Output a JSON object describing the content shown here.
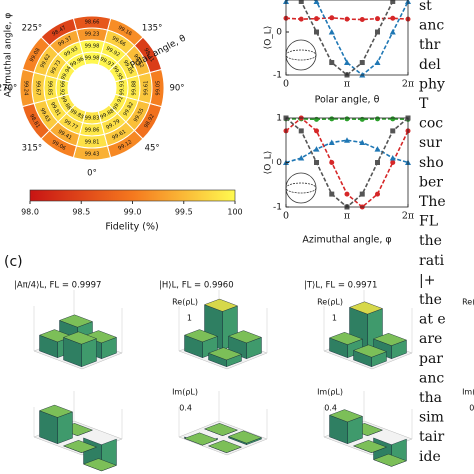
{
  "polar": {
    "center": null,
    "angle_labels": [
      {
        "angle": 225,
        "label": "225°"
      },
      {
        "angle": 135,
        "label": "135°"
      },
      {
        "angle": 270,
        "label": "270°"
      },
      {
        "angle": 90,
        "label": "90°"
      },
      {
        "angle": 315,
        "label": "315°"
      },
      {
        "angle": 45,
        "label": "45°"
      },
      {
        "angle": 0,
        "label": "0°"
      }
    ],
    "azimuthal_label": "Azimuthal angle, φ",
    "polar_label": "Polar angle, θ",
    "rings": [
      [
        99.83,
        99.88,
        99.91,
        99.93,
        99.95,
        99.97,
        99.98,
        99.96,
        99.94,
        99.92,
        99.86,
        99.85
      ],
      [
        99.86,
        99.79,
        99.82,
        99.88,
        99.85,
        99.92,
        99.98,
        99.93,
        99.73,
        99.85,
        99.81,
        99.77
      ],
      [
        99.81,
        99.61,
        99.55,
        99.61,
        99.52,
        99.66,
        99.23,
        99.37,
        99.62,
        99.67,
        99.63,
        99.41
      ],
      [
        99.43,
        99.12,
        98.92,
        99.05,
        98.41,
        99.16,
        98.66,
        98.47,
        99.08,
        99.24,
        98.81,
        99.06
      ]
    ]
  },
  "colorbar": {
    "clim": [
      98,
      100
    ],
    "ticks": [
      {
        "value": 98,
        "label": "98.0"
      },
      98.5,
      {
        "value": 99,
        "label": "99.0"
      },
      99.5,
      100
    ],
    "label": "Fidelity (%)"
  },
  "plots": [
    {
      "ylabel": "⟨O_L⟩",
      "xlabel": "Polar angle, θ",
      "xlim": [
        0,
        6.2832
      ],
      "ylim": [
        -1,
        1
      ],
      "xticks": [
        0,
        {
          "value": 3.1416,
          "label": "π"
        },
        {
          "value": 6.2832,
          "label": "2π"
        }
      ],
      "yticks": [
        0,
        -1
      ],
      "x": [
        0,
        0.7854,
        1.5708,
        2.3562,
        3.1416,
        3.927,
        4.7124,
        5.4978,
        6.2832
      ],
      "series": [
        {
          "color": "#d62728",
          "marker": "circle",
          "values": [
            0.32,
            0.3,
            0.31,
            0.33,
            0.3,
            0.29,
            0.31,
            0.32,
            0.3
          ]
        },
        {
          "color": "#1f77b4",
          "marker": "triangle",
          "values": [
            0.71,
            1,
            0.71,
            0,
            -0.71,
            -1,
            -0.71,
            0,
            0.71
          ]
        },
        {
          "color": "#555555",
          "marker": "square",
          "values": [
            1,
            0.71,
            0,
            -0.71,
            -1,
            -0.71,
            0,
            0.71,
            1
          ]
        }
      ]
    },
    {
      "ylabel": "⟨O_L⟩",
      "xlabel": "Azimuthal angle, φ",
      "xlim": [
        0,
        6.2832
      ],
      "ylim": [
        -1,
        1
      ],
      "xticks": [
        0,
        {
          "value": 3.1416,
          "label": "π"
        },
        {
          "value": 6.2832,
          "label": "2π"
        }
      ],
      "yticks": [
        1,
        0,
        -1
      ],
      "x": [
        0,
        0.7854,
        1.5708,
        2.3562,
        3.1416,
        3.927,
        4.7124,
        5.4978,
        6.2832
      ],
      "series": [
        {
          "color": "#2ca02c",
          "marker": "circle",
          "values": [
            0.98,
            0.98,
            0.97,
            0.98,
            0.98,
            0.97,
            0.98,
            0.98,
            0.97
          ]
        },
        {
          "color": "#d62728",
          "marker": "circle",
          "values": [
            0.71,
            1,
            0.71,
            0,
            -0.71,
            -1,
            -0.71,
            0,
            0.71
          ]
        },
        {
          "color": "#1f77b4",
          "marker": "triangle",
          "values": [
            0,
            0.1,
            0.3,
            0.45,
            0.5,
            0.45,
            0.3,
            0.1,
            0
          ]
        },
        {
          "color": "#555555",
          "marker": "square",
          "values": [
            1,
            0.71,
            0,
            -0.71,
            -1,
            -0.71,
            0,
            0.71,
            1
          ]
        }
      ]
    }
  ],
  "panel_c": {
    "label": "(c)",
    "re_label": "Re(ρL)",
    "re_tick": 1,
    "im_label": "Im(ρL)",
    "im_tick": 0.4,
    "states": [
      {
        "title": "|Aπ/4⟩L, FL = 0.9997",
        "re": [
          0.5,
          0.35,
          0.35,
          0.5
        ],
        "im": [
          0,
          -0.35,
          0.35,
          0
        ]
      },
      {
        "title": "|H⟩L, FL = 0.9960",
        "re": [
          0.85,
          0.35,
          0.35,
          0.15
        ],
        "im": [
          0,
          0.02,
          -0.02,
          0
        ]
      },
      {
        "title": "|T⟩L, FL = 0.9971",
        "re": [
          0.79,
          0.29,
          0.29,
          0.21
        ],
        "im": [
          0,
          -0.29,
          0.29,
          0
        ]
      }
    ]
  },
  "text_column": [
    "st",
    "anc",
    "thr",
    "del",
    "phy",
    "T",
    "coc",
    "sur",
    "sho",
    "ber",
    "The",
    "FL",
    "the",
    "rati",
    "|+",
    "the",
    "at e",
    "are",
    "par",
    "anc",
    "tha",
    "sim",
    "tair",
    "ide"
  ]
}
